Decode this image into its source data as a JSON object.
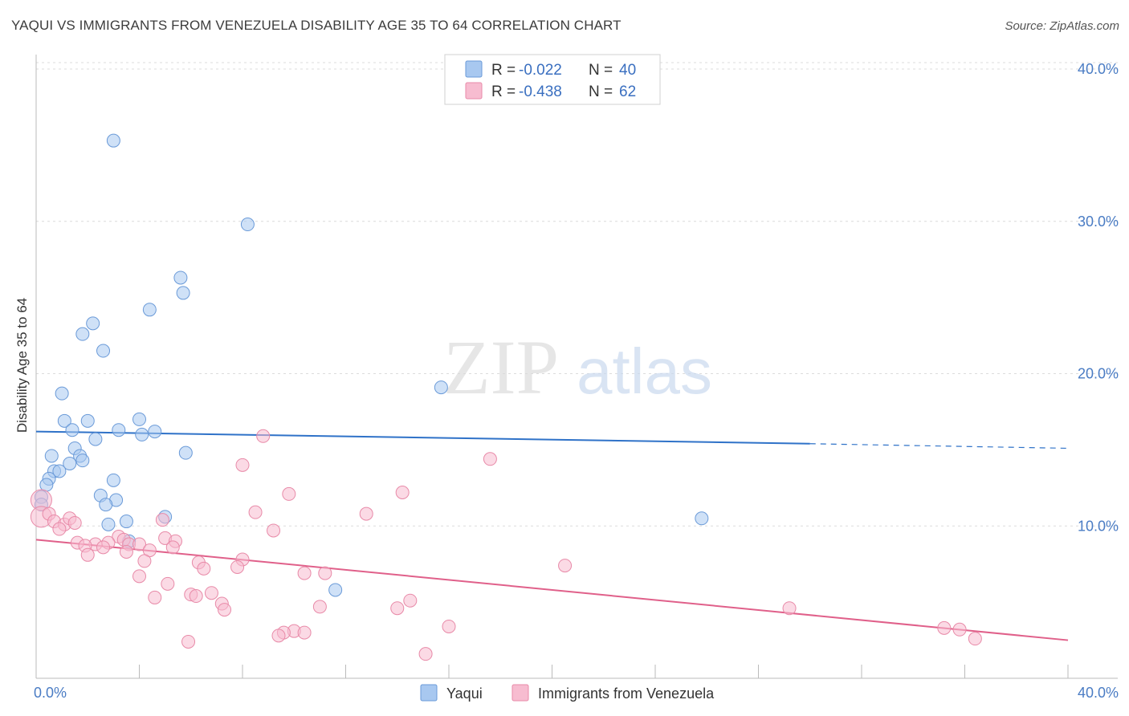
{
  "title": "YAQUI VS IMMIGRANTS FROM VENEZUELA DISABILITY AGE 35 TO 64 CORRELATION CHART",
  "source": "Source: ZipAtlas.com",
  "watermark": {
    "zip": "ZIP",
    "atlas": "atlas"
  },
  "chart_data": {
    "type": "scatter",
    "title": "YAQUI VS IMMIGRANTS FROM VENEZUELA DISABILITY AGE 35 TO 64 CORRELATION CHART",
    "ylabel": "Disability Age 35 to 64",
    "xlabel": "",
    "xlim": [
      0,
      40
    ],
    "ylim": [
      0,
      40
    ],
    "x_tick_labels": [
      "0.0%",
      "40.0%"
    ],
    "y_tick_labels": [
      "10.0%",
      "20.0%",
      "30.0%",
      "40.0%"
    ],
    "y_ticks": [
      10,
      20,
      30,
      40
    ],
    "legend": {
      "r_label": "R =",
      "n_label": "N =",
      "entries": [
        {
          "name": "Yaqui",
          "r": "-0.022",
          "n": "40",
          "color": "#a8c8f0",
          "edge": "#6a9ad8"
        },
        {
          "name": "Immigrants from Venezuela",
          "r": "-0.438",
          "n": "62",
          "color": "#f7bcd0",
          "edge": "#e88aa8"
        }
      ]
    },
    "series": [
      {
        "name": "Yaqui",
        "color": "#a8c8f0",
        "edge": "#6a9ad8",
        "line_color": "#2f72c8",
        "trend": {
          "x0": 0.0,
          "y0": 16.2,
          "x1": 30.0,
          "y1": 15.4,
          "x_dash_end": 40.0,
          "y_dash_end": 15.1
        },
        "points": [
          [
            3.0,
            35.3
          ],
          [
            8.2,
            29.8
          ],
          [
            5.6,
            26.3
          ],
          [
            5.7,
            25.3
          ],
          [
            4.4,
            24.2
          ],
          [
            2.2,
            23.3
          ],
          [
            1.8,
            22.6
          ],
          [
            2.6,
            21.5
          ],
          [
            15.7,
            19.1
          ],
          [
            1.0,
            18.7
          ],
          [
            1.1,
            16.9
          ],
          [
            2.0,
            16.9
          ],
          [
            4.0,
            17.0
          ],
          [
            1.4,
            16.3
          ],
          [
            3.2,
            16.3
          ],
          [
            4.1,
            16.0
          ],
          [
            4.6,
            16.2
          ],
          [
            2.3,
            15.7
          ],
          [
            1.5,
            15.1
          ],
          [
            0.6,
            14.6
          ],
          [
            5.8,
            14.8
          ],
          [
            1.7,
            14.6
          ],
          [
            1.8,
            14.3
          ],
          [
            1.3,
            14.1
          ],
          [
            0.7,
            13.6
          ],
          [
            0.9,
            13.6
          ],
          [
            0.5,
            13.1
          ],
          [
            3.0,
            13.0
          ],
          [
            0.4,
            12.7
          ],
          [
            2.5,
            12.0
          ],
          [
            0.2,
            11.9
          ],
          [
            3.1,
            11.7
          ],
          [
            0.2,
            11.4
          ],
          [
            2.7,
            11.4
          ],
          [
            5.0,
            10.6
          ],
          [
            25.8,
            10.5
          ],
          [
            3.5,
            10.3
          ],
          [
            2.8,
            10.1
          ],
          [
            3.6,
            9.0
          ],
          [
            11.6,
            5.8
          ]
        ]
      },
      {
        "name": "Immigrants from Venezuela",
        "color": "#f7bcd0",
        "edge": "#e88aa8",
        "line_color": "#e0608a",
        "trend": {
          "x0": 0.0,
          "y0": 9.1,
          "x1": 40.0,
          "y1": 2.5
        },
        "points": [
          [
            0.2,
            11.7
          ],
          [
            0.2,
            10.6
          ],
          [
            0.5,
            10.8
          ],
          [
            0.7,
            10.3
          ],
          [
            1.1,
            10.1
          ],
          [
            1.3,
            10.5
          ],
          [
            1.5,
            10.2
          ],
          [
            0.9,
            9.8
          ],
          [
            8.8,
            15.9
          ],
          [
            17.6,
            14.4
          ],
          [
            8.0,
            14.0
          ],
          [
            14.2,
            12.2
          ],
          [
            9.8,
            12.1
          ],
          [
            8.5,
            10.9
          ],
          [
            12.8,
            10.8
          ],
          [
            4.9,
            10.4
          ],
          [
            9.2,
            9.7
          ],
          [
            3.2,
            9.3
          ],
          [
            5.0,
            9.2
          ],
          [
            3.4,
            9.1
          ],
          [
            5.4,
            9.0
          ],
          [
            1.6,
            8.9
          ],
          [
            2.3,
            8.8
          ],
          [
            2.8,
            8.9
          ],
          [
            3.6,
            8.8
          ],
          [
            4.0,
            8.8
          ],
          [
            1.9,
            8.7
          ],
          [
            2.6,
            8.6
          ],
          [
            5.3,
            8.6
          ],
          [
            4.4,
            8.4
          ],
          [
            3.5,
            8.3
          ],
          [
            2.0,
            8.1
          ],
          [
            4.2,
            7.7
          ],
          [
            6.3,
            7.6
          ],
          [
            8.0,
            7.8
          ],
          [
            20.5,
            7.4
          ],
          [
            7.8,
            7.3
          ],
          [
            6.5,
            7.2
          ],
          [
            10.4,
            6.9
          ],
          [
            11.2,
            6.9
          ],
          [
            4.0,
            6.7
          ],
          [
            5.1,
            6.2
          ],
          [
            6.8,
            5.6
          ],
          [
            6.0,
            5.5
          ],
          [
            6.2,
            5.4
          ],
          [
            4.6,
            5.3
          ],
          [
            14.5,
            5.1
          ],
          [
            7.2,
            4.9
          ],
          [
            11.0,
            4.7
          ],
          [
            14.0,
            4.6
          ],
          [
            7.3,
            4.5
          ],
          [
            29.2,
            4.6
          ],
          [
            35.2,
            3.3
          ],
          [
            35.8,
            3.2
          ],
          [
            16.0,
            3.4
          ],
          [
            10.0,
            3.1
          ],
          [
            9.6,
            3.0
          ],
          [
            10.4,
            3.0
          ],
          [
            9.4,
            2.8
          ],
          [
            36.4,
            2.6
          ],
          [
            5.9,
            2.4
          ],
          [
            15.1,
            1.6
          ]
        ]
      }
    ]
  }
}
